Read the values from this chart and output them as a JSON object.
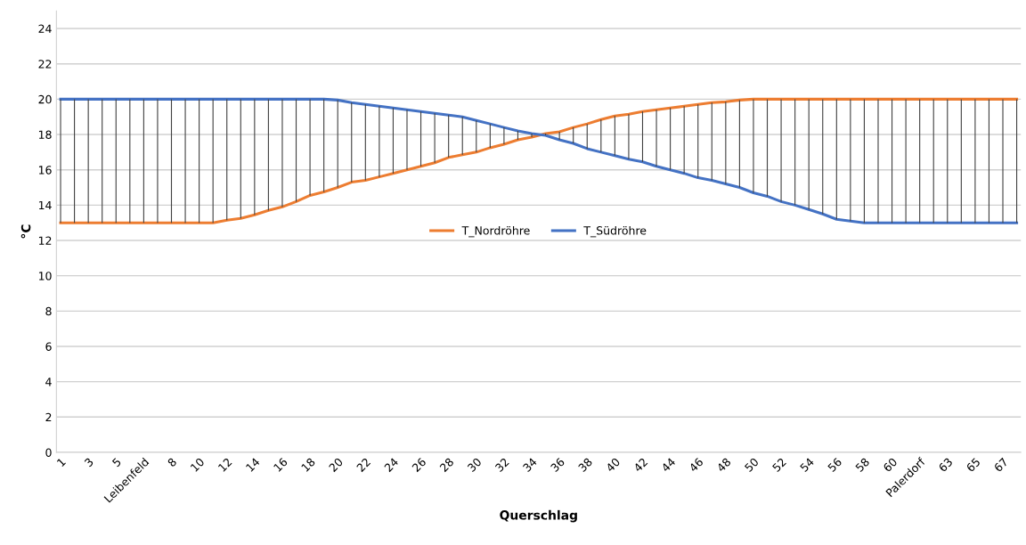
{
  "chart_data": {
    "type": "line",
    "xlabel": "Querschlag",
    "ylabel": "°C",
    "categories": [
      "1",
      null,
      "3",
      null,
      "5",
      null,
      "Leibenfeld",
      null,
      "8",
      null,
      "10",
      null,
      "12",
      null,
      "14",
      null,
      "16",
      null,
      "18",
      null,
      "20",
      null,
      "22",
      null,
      "24",
      null,
      "26",
      null,
      "28",
      null,
      "30",
      null,
      "32",
      null,
      "34",
      null,
      "36",
      null,
      "38",
      null,
      "40",
      null,
      "42",
      null,
      "44",
      null,
      "46",
      null,
      "48",
      null,
      "50",
      null,
      "52",
      null,
      "54",
      null,
      "56",
      null,
      "58",
      null,
      "60",
      null,
      "Palerdorf",
      null,
      "63",
      null,
      "65",
      null,
      "67",
      null
    ],
    "series": [
      {
        "name": "T_Nordröhre",
        "color": "#ed7d31",
        "values": [
          13,
          13,
          13,
          13,
          13,
          13,
          13,
          13,
          13,
          13,
          13,
          13,
          13.15,
          13.25,
          13.45,
          13.7,
          13.9,
          14.2,
          14.55,
          14.75,
          15,
          15.3,
          15.4,
          15.6,
          15.8,
          16,
          16.2,
          16.4,
          16.7,
          16.85,
          17,
          17.25,
          17.45,
          17.7,
          17.85,
          18.05,
          18.15,
          18.4,
          18.6,
          18.85,
          19.05,
          19.15,
          19.3,
          19.4,
          19.5,
          19.6,
          19.7,
          19.8,
          19.85,
          19.95,
          20,
          20,
          20,
          20,
          20,
          20,
          20,
          20,
          20,
          20,
          20,
          20,
          20,
          20,
          20,
          20,
          20,
          20,
          20,
          20
        ]
      },
      {
        "name": "T_Südröhre",
        "color": "#4472c4",
        "values": [
          20,
          20,
          20,
          20,
          20,
          20,
          20,
          20,
          20,
          20,
          20,
          20,
          20,
          20,
          20,
          20,
          20,
          20,
          20,
          20,
          19.95,
          19.8,
          19.7,
          19.6,
          19.5,
          19.4,
          19.3,
          19.2,
          19.1,
          19,
          18.8,
          18.6,
          18.4,
          18.2,
          18.05,
          17.95,
          17.7,
          17.5,
          17.2,
          17,
          16.8,
          16.6,
          16.45,
          16.2,
          16,
          15.8,
          15.55,
          15.4,
          15.2,
          15,
          14.7,
          14.5,
          14.2,
          14,
          13.75,
          13.5,
          13.2,
          13.1,
          13,
          13,
          13,
          13,
          13,
          13,
          13,
          13,
          13,
          13,
          13,
          13
        ],
        "errors": [
          [
            13,
            20
          ],
          [
            13,
            20
          ],
          [
            13,
            20
          ],
          [
            13,
            20
          ],
          [
            13,
            20
          ],
          [
            13,
            20
          ],
          [
            13,
            20
          ],
          [
            13,
            20
          ],
          [
            13,
            20
          ],
          [
            13,
            20
          ],
          [
            13,
            20
          ],
          [
            13,
            20
          ],
          [
            13.15,
            20
          ],
          [
            13.25,
            20
          ],
          [
            13.45,
            20
          ],
          [
            13.7,
            20
          ],
          [
            13.9,
            20
          ],
          [
            14.2,
            20
          ],
          [
            14.55,
            20
          ],
          [
            14.75,
            20
          ],
          [
            15,
            19.95
          ],
          [
            15.3,
            19.8
          ],
          [
            15.4,
            19.7
          ],
          [
            15.6,
            19.6
          ],
          [
            15.8,
            19.5
          ],
          [
            16,
            19.4
          ],
          [
            16.2,
            19.3
          ],
          [
            16.4,
            19.2
          ],
          [
            16.7,
            19.1
          ],
          [
            16.85,
            19
          ],
          [
            17,
            18.8
          ],
          [
            17.25,
            18.6
          ],
          [
            17.45,
            18.4
          ],
          [
            17.7,
            18.2
          ],
          [
            17.85,
            18.05
          ],
          [
            17.95,
            18.05
          ],
          [
            17.7,
            18.15
          ],
          [
            17.5,
            18.4
          ],
          [
            17.2,
            18.6
          ],
          [
            17,
            18.85
          ],
          [
            16.8,
            19.05
          ],
          [
            16.6,
            19.15
          ],
          [
            16.45,
            19.3
          ],
          [
            16.2,
            19.4
          ],
          [
            16,
            19.5
          ],
          [
            15.8,
            19.6
          ],
          [
            15.55,
            19.7
          ],
          [
            15.4,
            19.8
          ],
          [
            15.2,
            19.85
          ],
          [
            15,
            19.95
          ],
          [
            14.7,
            20
          ],
          [
            14.5,
            20
          ],
          [
            14.2,
            20
          ],
          [
            14,
            20
          ],
          [
            13.75,
            20
          ],
          [
            13.5,
            20
          ],
          [
            13.2,
            20
          ],
          [
            13.1,
            20
          ],
          [
            13,
            20
          ],
          [
            13,
            20
          ],
          [
            13,
            20
          ],
          [
            13,
            20
          ],
          [
            13,
            20
          ],
          [
            13,
            20
          ],
          [
            13,
            20
          ],
          [
            13,
            20
          ],
          [
            13,
            20
          ],
          [
            13,
            20
          ],
          [
            13,
            20
          ],
          [
            13,
            20
          ]
        ]
      }
    ],
    "ylim": [
      0,
      25
    ],
    "yticks": [
      0,
      2,
      4,
      6,
      8,
      10,
      12,
      14,
      16,
      18,
      20,
      22,
      24
    ],
    "grid": "y",
    "legend": "center",
    "marker": "none",
    "line_style": "solid"
  }
}
